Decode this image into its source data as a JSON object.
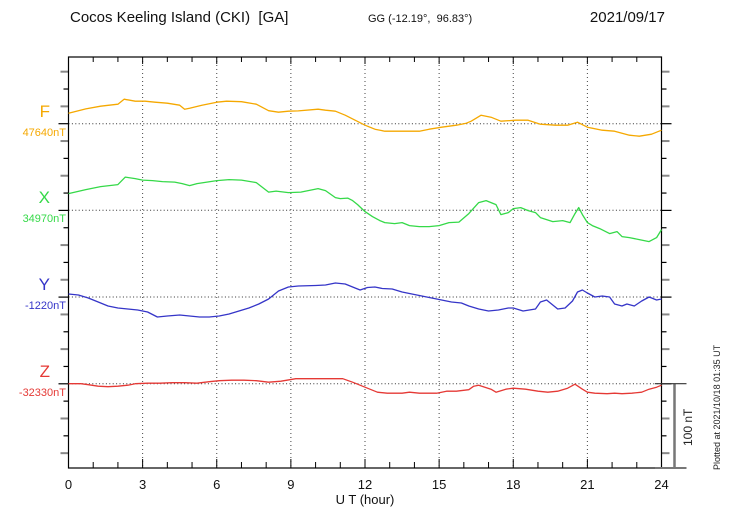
{
  "header": {
    "title": "Cocos Keeling Island (CKI)  [GA]",
    "coords": "GG (-12.19°,  96.83°)",
    "date": "2021/09/17"
  },
  "x_axis": {
    "label": "U T (hour)",
    "ticks": [
      "0",
      "3",
      "6",
      "9",
      "12",
      "15",
      "18",
      "21",
      "24"
    ]
  },
  "scale_bar": {
    "label": "100 nT",
    "value_nT": 100
  },
  "watermark": "Plotted at 2021/10/18 01:35 UT",
  "chart_data": {
    "type": "line",
    "title": "Cocos Keeling Island (CKI) [GA] magnetogram 2021/09/17",
    "xlabel": "U T (hour)",
    "x_range": [
      0,
      24
    ],
    "x_tick_step": 3,
    "grid": "dotted-vertical-every-3h-and-channel-baselines",
    "legend_position": "left-of-each-trace",
    "y_scale_nT_per_division": 100,
    "series": [
      {
        "name": "F",
        "base_label": "47640nT",
        "base_value_nT": 47640,
        "color": "#f5a800",
        "units": "nT deviation from base",
        "points": [
          [
            0,
            12.1
          ],
          [
            0.7,
            17.1
          ],
          [
            1.3,
            20.2
          ],
          [
            2,
            22.5
          ],
          [
            2.25,
            28.3
          ],
          [
            2.7,
            26
          ],
          [
            3.1,
            26
          ],
          [
            3.5,
            24.8
          ],
          [
            4,
            23.6
          ],
          [
            4.5,
            21.3
          ],
          [
            4.7,
            16.7
          ],
          [
            4.9,
            17.9
          ],
          [
            5.4,
            21.3
          ],
          [
            6,
            24.8
          ],
          [
            6.4,
            26
          ],
          [
            7,
            25.4
          ],
          [
            7.6,
            22.5
          ],
          [
            8.1,
            15
          ],
          [
            8.5,
            13.3
          ],
          [
            8.9,
            14.4
          ],
          [
            9.3,
            14.8
          ],
          [
            10.1,
            16.7
          ],
          [
            10.4,
            15.6
          ],
          [
            10.8,
            14.4
          ],
          [
            11.2,
            9.8
          ],
          [
            11.6,
            4
          ],
          [
            12,
            -1.7
          ],
          [
            12.4,
            -6.3
          ],
          [
            12.8,
            -8.7
          ],
          [
            13.5,
            -8.7
          ],
          [
            14.2,
            -8.7
          ],
          [
            14.6,
            -6.3
          ],
          [
            15.1,
            -4
          ],
          [
            15.7,
            -1.7
          ],
          [
            16.1,
            0.6
          ],
          [
            16.3,
            2.9
          ],
          [
            16.7,
            9.8
          ],
          [
            17.1,
            7.5
          ],
          [
            17.5,
            2.9
          ],
          [
            18.1,
            4
          ],
          [
            18.6,
            4
          ],
          [
            19.1,
            -0.6
          ],
          [
            19.7,
            -1.7
          ],
          [
            20.2,
            -1.7
          ],
          [
            20.6,
            1.7
          ],
          [
            21,
            -4
          ],
          [
            21.6,
            -7.5
          ],
          [
            22.1,
            -8.7
          ],
          [
            22.7,
            -13.3
          ],
          [
            23.1,
            -14.4
          ],
          [
            23.6,
            -12.1
          ],
          [
            24,
            -7.5
          ]
        ]
      },
      {
        "name": "X",
        "base_label": "34970nT",
        "base_value_nT": 34970,
        "color": "#35d948",
        "units": "nT deviation from base",
        "points": [
          [
            0,
            19.3
          ],
          [
            0.7,
            23.9
          ],
          [
            1.3,
            27.3
          ],
          [
            2,
            29.6
          ],
          [
            2.3,
            38.3
          ],
          [
            2.7,
            36.6
          ],
          [
            3,
            34.8
          ],
          [
            3.4,
            34.3
          ],
          [
            3.8,
            33.1
          ],
          [
            4.3,
            32.5
          ],
          [
            4.6,
            30.8
          ],
          [
            4.9,
            28.5
          ],
          [
            5.2,
            30.8
          ],
          [
            6,
            34.3
          ],
          [
            6.5,
            35.4
          ],
          [
            7,
            34.8
          ],
          [
            7.6,
            32
          ],
          [
            8.1,
            21
          ],
          [
            8.4,
            22.1
          ],
          [
            8.9,
            20.4
          ],
          [
            9.4,
            21
          ],
          [
            10.1,
            25
          ],
          [
            10.4,
            22.7
          ],
          [
            10.8,
            14.6
          ],
          [
            11,
            13.5
          ],
          [
            11.3,
            14.1
          ],
          [
            11.5,
            11.2
          ],
          [
            11.7,
            6.6
          ],
          [
            12,
            -1.5
          ],
          [
            12.3,
            -7.3
          ],
          [
            12.6,
            -11.9
          ],
          [
            12.8,
            -14.2
          ],
          [
            13.2,
            -15.3
          ],
          [
            13.5,
            -14.2
          ],
          [
            13.8,
            -17.6
          ],
          [
            14.2,
            -18.8
          ],
          [
            14.6,
            -18.8
          ],
          [
            15,
            -17.6
          ],
          [
            15.4,
            -14.2
          ],
          [
            15.8,
            -13.6
          ],
          [
            16.2,
            -3.8
          ],
          [
            16.6,
            8.9
          ],
          [
            16.9,
            11.2
          ],
          [
            17.3,
            6.6
          ],
          [
            17.5,
            -5
          ],
          [
            17.8,
            -2.7
          ],
          [
            18,
            2
          ],
          [
            18.3,
            3.1
          ],
          [
            18.6,
            -0.3
          ],
          [
            18.9,
            -2.7
          ],
          [
            19.1,
            -8.4
          ],
          [
            19.6,
            -13
          ],
          [
            20,
            -11.9
          ],
          [
            20.3,
            -14.2
          ],
          [
            20.5,
            -3.8
          ],
          [
            20.65,
            3.1
          ],
          [
            20.8,
            -5
          ],
          [
            21,
            -14.2
          ],
          [
            21.2,
            -17.6
          ],
          [
            21.5,
            -21.1
          ],
          [
            21.9,
            -26.9
          ],
          [
            22.2,
            -24.6
          ],
          [
            22.4,
            -30.3
          ],
          [
            22.7,
            -31.5
          ],
          [
            23.1,
            -33.8
          ],
          [
            23.5,
            -36.1
          ],
          [
            23.8,
            -31.5
          ],
          [
            24,
            -22.3
          ]
        ]
      },
      {
        "name": "Y",
        "base_label": "-1220nT",
        "base_value_nT": -1220,
        "color": "#3535c8",
        "units": "nT deviation from base",
        "points": [
          [
            0,
            3.5
          ],
          [
            0.4,
            2.3
          ],
          [
            0.8,
            -1.2
          ],
          [
            1.2,
            -5.8
          ],
          [
            1.6,
            -10.4
          ],
          [
            2,
            -12.7
          ],
          [
            2.4,
            -13.8
          ],
          [
            2.8,
            -15
          ],
          [
            3.2,
            -17.3
          ],
          [
            3.6,
            -23.1
          ],
          [
            4,
            -21.9
          ],
          [
            4.5,
            -20.8
          ],
          [
            4.9,
            -21.9
          ],
          [
            5.3,
            -23.1
          ],
          [
            5.7,
            -23.1
          ],
          [
            6.1,
            -21.9
          ],
          [
            6.5,
            -19.6
          ],
          [
            6.9,
            -16.1
          ],
          [
            7.3,
            -12.7
          ],
          [
            7.7,
            -8.1
          ],
          [
            8.1,
            -2.3
          ],
          [
            8.5,
            6.9
          ],
          [
            8.9,
            11.5
          ],
          [
            9.3,
            12.7
          ],
          [
            10,
            13.3
          ],
          [
            10.4,
            13.8
          ],
          [
            10.8,
            16.1
          ],
          [
            11.2,
            15
          ],
          [
            11.6,
            10.4
          ],
          [
            11.8,
            8.1
          ],
          [
            12.1,
            11
          ],
          [
            12.4,
            11.5
          ],
          [
            12.7,
            9.8
          ],
          [
            13.1,
            9.2
          ],
          [
            13.5,
            5.8
          ],
          [
            13.9,
            3.5
          ],
          [
            14.3,
            1.2
          ],
          [
            14.7,
            -1.2
          ],
          [
            15.1,
            -3.5
          ],
          [
            15.5,
            -5.8
          ],
          [
            15.9,
            -6.9
          ],
          [
            16.2,
            -10.4
          ],
          [
            16.6,
            -13.8
          ],
          [
            17,
            -16.1
          ],
          [
            17.4,
            -15
          ],
          [
            17.8,
            -12.7
          ],
          [
            18,
            -12.7
          ],
          [
            18.4,
            -16.1
          ],
          [
            18.9,
            -13.8
          ],
          [
            19.1,
            -5.8
          ],
          [
            19.35,
            -3.5
          ],
          [
            19.5,
            -6.9
          ],
          [
            19.8,
            -13.8
          ],
          [
            20.1,
            -12.7
          ],
          [
            20.4,
            -4.6
          ],
          [
            20.6,
            5.8
          ],
          [
            20.8,
            8.1
          ],
          [
            21,
            4.6
          ],
          [
            21.3,
            0
          ],
          [
            21.6,
            1.2
          ],
          [
            21.9,
            0
          ],
          [
            22.1,
            -8.1
          ],
          [
            22.4,
            -10.4
          ],
          [
            22.6,
            -8.1
          ],
          [
            22.9,
            -10.4
          ],
          [
            23.2,
            -4.6
          ],
          [
            23.5,
            0
          ],
          [
            23.8,
            -3.5
          ],
          [
            24,
            -2.3
          ]
        ]
      },
      {
        "name": "Z",
        "base_label": "-32330nT",
        "base_value_nT": -32330,
        "color": "#e53935",
        "units": "nT deviation from base",
        "points": [
          [
            0,
            0
          ],
          [
            0.5,
            0
          ],
          [
            0.8,
            -1.2
          ],
          [
            1.2,
            -2.9
          ],
          [
            1.6,
            -3.5
          ],
          [
            2,
            -2.9
          ],
          [
            2.4,
            -1.7
          ],
          [
            2.7,
            0
          ],
          [
            3.2,
            0.6
          ],
          [
            3.7,
            0.6
          ],
          [
            4.2,
            1.2
          ],
          [
            4.7,
            1.2
          ],
          [
            5.2,
            0.6
          ],
          [
            5.7,
            2.3
          ],
          [
            6.1,
            3.5
          ],
          [
            6.6,
            4
          ],
          [
            7.1,
            4
          ],
          [
            7.6,
            3.5
          ],
          [
            8.1,
            1.7
          ],
          [
            8.6,
            2.9
          ],
          [
            9.2,
            5.8
          ],
          [
            9.8,
            5.8
          ],
          [
            10.5,
            5.8
          ],
          [
            11.1,
            5.8
          ],
          [
            11.5,
            1.7
          ],
          [
            11.7,
            -0.6
          ],
          [
            12.1,
            -5.2
          ],
          [
            12.5,
            -9.8
          ],
          [
            12.9,
            -11
          ],
          [
            13.5,
            -11
          ],
          [
            13.8,
            -9.8
          ],
          [
            14.2,
            -11
          ],
          [
            14.9,
            -11
          ],
          [
            15.3,
            -8.7
          ],
          [
            15.7,
            -8.7
          ],
          [
            16.2,
            -6.9
          ],
          [
            16.4,
            -2.9
          ],
          [
            16.6,
            -1.7
          ],
          [
            17.1,
            -6.3
          ],
          [
            17.3,
            -9.8
          ],
          [
            17.7,
            -6.3
          ],
          [
            18,
            -5.2
          ],
          [
            18.5,
            -6.3
          ],
          [
            19,
            -8.7
          ],
          [
            19.4,
            -9.8
          ],
          [
            19.8,
            -8.7
          ],
          [
            20.2,
            -5.2
          ],
          [
            20.5,
            -0.6
          ],
          [
            20.8,
            -6.3
          ],
          [
            21,
            -9.8
          ],
          [
            21.3,
            -11
          ],
          [
            21.8,
            -11.5
          ],
          [
            22.1,
            -11
          ],
          [
            22.4,
            -11.5
          ],
          [
            22.8,
            -11
          ],
          [
            23.2,
            -9.8
          ],
          [
            23.5,
            -6.3
          ],
          [
            23.8,
            -4
          ],
          [
            24,
            -1.7
          ]
        ]
      }
    ]
  }
}
